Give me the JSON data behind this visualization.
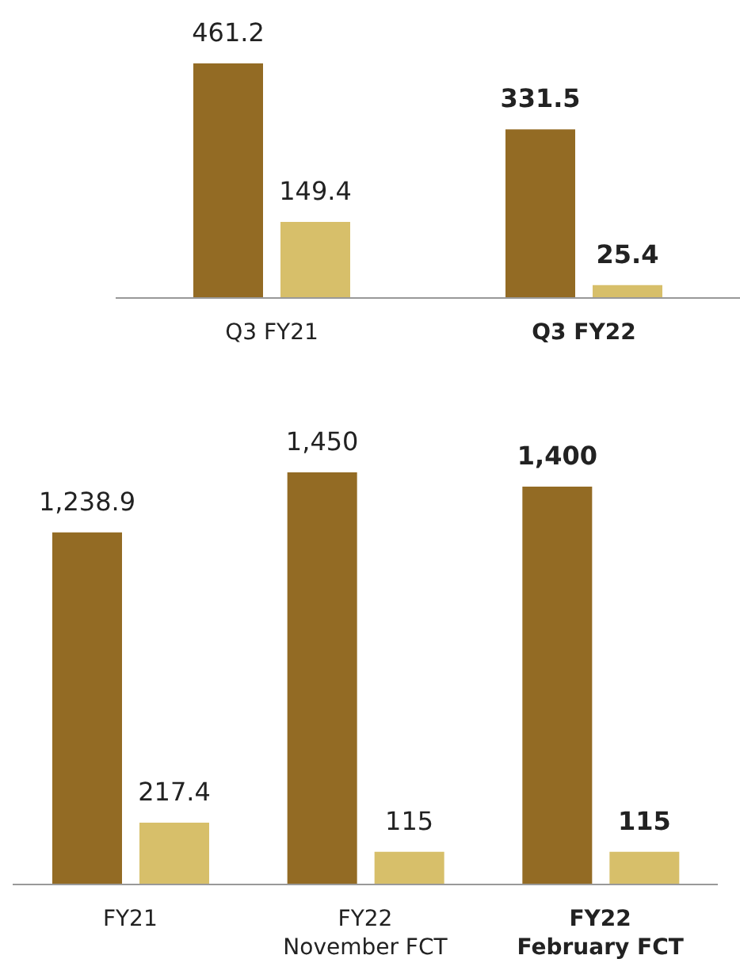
{
  "chart_data": [
    {
      "type": "bar",
      "categories": [
        "Q3 FY21",
        "Q3 FY22"
      ],
      "series": [
        {
          "color": "#936b24",
          "values": [
            461.2,
            331.5
          ]
        },
        {
          "color": "#d7bf6a",
          "values": [
            149.4,
            25.4
          ]
        }
      ],
      "data_labels": true,
      "legend": false,
      "grid": false
    },
    {
      "type": "bar",
      "categories": [
        "FY21",
        "FY22 November FCT",
        "FY22 February FCT"
      ],
      "series": [
        {
          "color": "#936b24",
          "values": [
            1238.9,
            1450,
            1400
          ],
          "value_labels": [
            "1,238.9",
            "1,450",
            "1,400"
          ]
        },
        {
          "color": "#d7bf6a",
          "values": [
            217.4,
            115,
            115
          ],
          "value_labels": [
            "217.4",
            "115",
            "115"
          ]
        }
      ],
      "legend": false,
      "grid": false
    }
  ]
}
